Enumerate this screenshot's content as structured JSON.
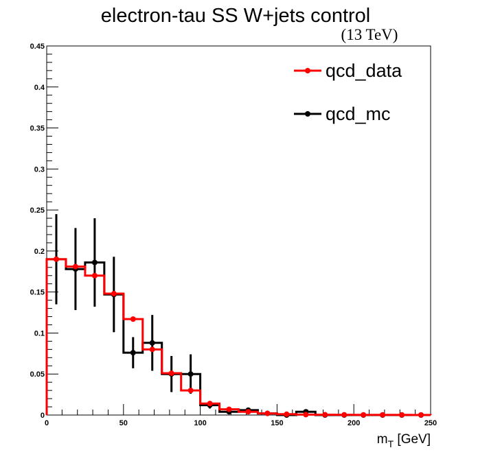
{
  "chart_data": {
    "type": "histogram",
    "title": "electron-tau SS W+jets control",
    "subtitle": "(13 TeV)",
    "xlabel": {
      "main": "m",
      "sub": "T",
      "unit": " [GeV]"
    },
    "ylabel": "",
    "xlim": [
      0,
      250
    ],
    "ylim": [
      0,
      0.45
    ],
    "x_ticks": [
      "0",
      "50",
      "100",
      "150",
      "200",
      "250"
    ],
    "y_ticks": [
      "0",
      "0.05",
      "0.1",
      "0.15",
      "0.2",
      "0.25",
      "0.3",
      "0.35",
      "0.4",
      "0.45"
    ],
    "bin_edges": [
      0,
      12.5,
      25,
      37.5,
      50,
      62.5,
      75,
      87.5,
      100,
      112.5,
      125,
      137.5,
      150,
      162.5,
      175,
      187.5,
      200,
      212.5,
      225,
      237.5,
      250
    ],
    "legend_position": "top-right",
    "grid": false,
    "series": [
      {
        "name": "qcd_data",
        "color": "#ff0000",
        "values": [
          0.19,
          0.181,
          0.17,
          0.148,
          0.117,
          0.08,
          0.051,
          0.03,
          0.014,
          0.007,
          0.004,
          0.002,
          0.001,
          0.0005,
          0.0004,
          0.0003,
          0.0002,
          0.0002,
          0.0002,
          0.0001
        ],
        "errors": [
          0,
          0,
          0,
          0,
          0,
          0,
          0,
          0,
          0,
          0,
          0,
          0,
          0,
          0,
          0,
          0,
          0,
          0,
          0,
          0
        ]
      },
      {
        "name": "qcd_mc",
        "color": "#000000",
        "values": [
          0.19,
          0.178,
          0.186,
          0.147,
          0.076,
          0.088,
          0.05,
          0.05,
          0.012,
          0.004,
          0.006,
          0.002,
          0,
          0.004,
          0,
          0,
          0,
          0,
          0,
          0
        ],
        "errors": [
          0.055,
          0.05,
          0.054,
          0.046,
          0.019,
          0.034,
          0.022,
          0.024,
          0.004,
          0.002,
          0.003,
          0.001,
          0,
          0.002,
          0,
          0,
          0,
          0,
          0,
          0
        ]
      }
    ]
  }
}
